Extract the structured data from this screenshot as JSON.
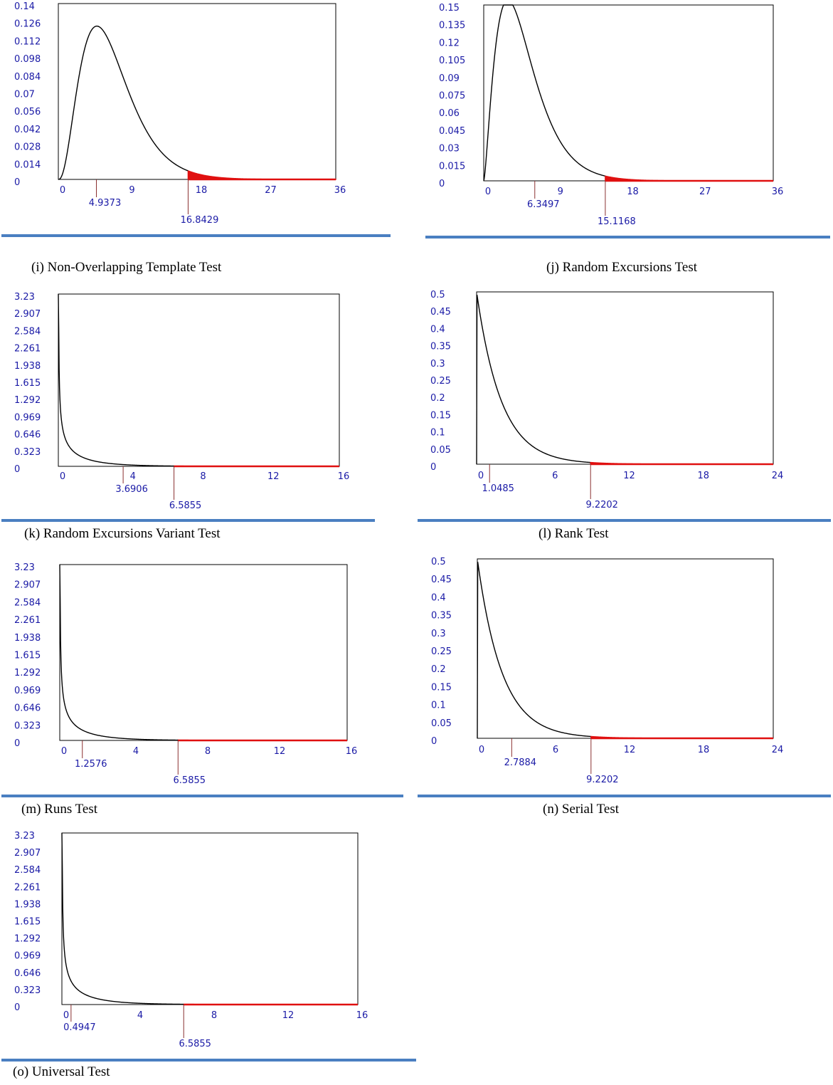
{
  "colors": {
    "curve": "#000000",
    "tail": "#e01010",
    "marker": "#8a3030",
    "ticks": "#1a1aa6",
    "divider": "#4a7fc1",
    "frame": "#000000"
  },
  "chart_data": [
    {
      "id": "i",
      "type": "line",
      "distribution": "chi-square",
      "df": 7,
      "caption": "(i)  Non-Overlapping Template Test",
      "xlim": [
        0,
        36
      ],
      "ylim": [
        0,
        0.14
      ],
      "xticks": [
        "0",
        "9",
        "18",
        "27",
        "36"
      ],
      "yticks": [
        "0",
        "0.014",
        "0.028",
        "0.042",
        "0.056",
        "0.07",
        "0.084",
        "0.098",
        "0.112",
        "0.126",
        "0.14"
      ],
      "statistic": 4.9373,
      "statistic_label": "4.9373",
      "critical": 16.8429,
      "critical_label": "16.8429"
    },
    {
      "id": "j",
      "type": "line",
      "distribution": "chi-square",
      "df": 5,
      "caption": "(j)   Random Excursions Test",
      "xlim": [
        0,
        36
      ],
      "ylim": [
        0,
        0.15
      ],
      "xticks": [
        "0",
        "9",
        "18",
        "27",
        "36"
      ],
      "yticks": [
        "0",
        "0.015",
        "0.03",
        "0.045",
        "0.06",
        "0.075",
        "0.09",
        "0.105",
        "0.12",
        "0.135",
        "0.15"
      ],
      "statistic": 6.3497,
      "statistic_label": "6.3497",
      "critical": 15.1168,
      "critical_label": "15.1168"
    },
    {
      "id": "k",
      "type": "line",
      "distribution": "chi-square",
      "df": 1,
      "caption": "(k) Random Excursions Variant Test",
      "xlim": [
        0,
        16
      ],
      "ylim": [
        0,
        3.23
      ],
      "xticks": [
        "0",
        "4",
        "8",
        "12",
        "16"
      ],
      "yticks": [
        "0",
        "0.323",
        "0.646",
        "0.969",
        "1.292",
        "1.615",
        "1.938",
        "2.261",
        "2.584",
        "2.907",
        "3.23"
      ],
      "statistic": 3.6906,
      "statistic_label": "3.6906",
      "critical": 6.5855,
      "critical_label": "6.5855"
    },
    {
      "id": "l",
      "type": "line",
      "distribution": "chi-square",
      "df": 2,
      "caption": "(l)  Rank Test",
      "xlim": [
        0,
        24
      ],
      "ylim": [
        0,
        0.5
      ],
      "xticks": [
        "0",
        "6",
        "12",
        "18",
        "24"
      ],
      "yticks": [
        "0",
        "0.05",
        "0.1",
        "0.15",
        "0.2",
        "0.25",
        "0.3",
        "0.35",
        "0.4",
        "0.45",
        "0.5"
      ],
      "statistic": 1.0485,
      "statistic_label": "1.0485",
      "critical": 9.2202,
      "critical_label": "9.2202"
    },
    {
      "id": "m",
      "type": "line",
      "distribution": "chi-square",
      "df": 1,
      "caption": "(m) Runs Test",
      "xlim": [
        0,
        16
      ],
      "ylim": [
        0,
        3.23
      ],
      "xticks": [
        "0",
        "4",
        "8",
        "12",
        "16"
      ],
      "yticks": [
        "0",
        "0.323",
        "0.646",
        "0.969",
        "1.292",
        "1.615",
        "1.938",
        "2.261",
        "2.584",
        "2.907",
        "3.23"
      ],
      "statistic": 1.2576,
      "statistic_label": "1.2576",
      "critical": 6.5855,
      "critical_label": "6.5855"
    },
    {
      "id": "n",
      "type": "line",
      "distribution": "chi-square",
      "df": 2,
      "caption": "(n) Serial Test",
      "xlim": [
        0,
        24
      ],
      "ylim": [
        0,
        0.5
      ],
      "xticks": [
        "0",
        "6",
        "12",
        "18",
        "24"
      ],
      "yticks": [
        "0",
        "0.05",
        "0.1",
        "0.15",
        "0.2",
        "0.25",
        "0.3",
        "0.35",
        "0.4",
        "0.45",
        "0.5"
      ],
      "statistic": 2.7884,
      "statistic_label": "2.7884",
      "critical": 9.2202,
      "critical_label": "9.2202"
    },
    {
      "id": "o",
      "type": "line",
      "distribution": "chi-square",
      "df": 1,
      "caption": "(o)  Universal  Test",
      "xlim": [
        0,
        16
      ],
      "ylim": [
        0,
        3.23
      ],
      "xticks": [
        "0",
        "4",
        "8",
        "12",
        "16"
      ],
      "yticks": [
        "0",
        "0.323",
        "0.646",
        "0.969",
        "1.292",
        "1.615",
        "1.938",
        "2.261",
        "2.584",
        "2.907",
        "3.23"
      ],
      "statistic": 0.4947,
      "statistic_label": "0.4947",
      "critical": 6.5855,
      "critical_label": "6.5855"
    }
  ]
}
